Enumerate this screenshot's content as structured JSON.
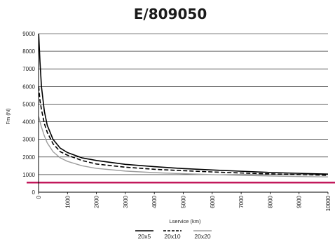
{
  "chart_data": {
    "type": "line",
    "title": "E/809050",
    "xlabel": "Lservice (km)",
    "ylabel": "Fm (N)",
    "xlim": [
      0,
      10000
    ],
    "ylim": [
      0,
      9000
    ],
    "x_ticks": [
      "0",
      "1000",
      "2000",
      "3000",
      "4000",
      "5000",
      "6000",
      "7000",
      "8000",
      "9000",
      "10000"
    ],
    "y_ticks": [
      "0",
      "1000",
      "2000",
      "3000",
      "4000",
      "5000",
      "6000",
      "7000",
      "8000",
      "9000"
    ],
    "grid": "horizontal",
    "legend_position": "bottom",
    "reference_line": {
      "y": 550,
      "color": "#c2185b"
    },
    "series": [
      {
        "name": "20x5",
        "color": "#000000",
        "dash": "solid",
        "x": [
          5,
          50,
          100,
          200,
          300,
          500,
          750,
          1000,
          1500,
          2000,
          3000,
          4000,
          5000,
          6000,
          7000,
          8000,
          9000,
          10000
        ],
        "y": [
          9000,
          7400,
          6000,
          4600,
          3800,
          3000,
          2500,
          2250,
          1950,
          1800,
          1580,
          1450,
          1340,
          1260,
          1190,
          1120,
          1070,
          1030
        ]
      },
      {
        "name": "20x10",
        "color": "#000000",
        "dash": "dashed",
        "x": [
          5,
          50,
          100,
          200,
          300,
          500,
          750,
          1000,
          1500,
          2000,
          3000,
          4000,
          5000,
          6000,
          7000,
          8000,
          9000,
          10000
        ],
        "y": [
          6000,
          5200,
          4700,
          3900,
          3400,
          2750,
          2300,
          2100,
          1800,
          1600,
          1420,
          1300,
          1220,
          1150,
          1090,
          1040,
          1000,
          960
        ]
      },
      {
        "name": "20x20",
        "color": "#9e9e9e",
        "dash": "solid",
        "x": [
          5,
          50,
          100,
          200,
          300,
          500,
          750,
          1000,
          1500,
          2000,
          3000,
          4000,
          5000,
          6000,
          7000,
          8000,
          9000,
          10000
        ],
        "y": [
          4300,
          4000,
          3700,
          3200,
          2800,
          2300,
          1950,
          1750,
          1500,
          1350,
          1200,
          1110,
          1050,
          1000,
          960,
          920,
          890,
          870
        ]
      }
    ]
  }
}
